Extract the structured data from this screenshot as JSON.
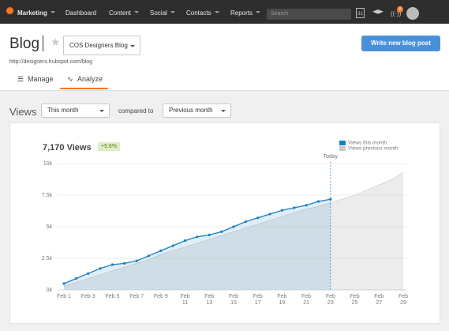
{
  "nav": {
    "items": [
      "Marketing",
      "Dashboard",
      "Content",
      "Social",
      "Contacts",
      "Reports"
    ],
    "search_placeholder": "Search",
    "calendar_day": "31",
    "notification_count": "8"
  },
  "header": {
    "title": "Blog",
    "blog_select": "COS Designers Blog",
    "url": "http://designers.hubspot.com/blog",
    "primary_button": "Write new blog post",
    "tabs": [
      "Manage",
      "Analyze"
    ]
  },
  "filters": {
    "label": "Views",
    "period": "This month",
    "compared_label": "compared to",
    "comparison": "Previous month"
  },
  "chart_data": {
    "type": "area",
    "headline": "7,170 Views",
    "change": "+5.6%",
    "annotation": "Today",
    "categories": [
      "Feb 1",
      null,
      "Feb 3",
      null,
      "Feb 5",
      null,
      "Feb 7",
      null,
      "Feb 9",
      null,
      "Feb 11",
      null,
      "Feb 13",
      null,
      "Feb 15",
      null,
      "Feb 17",
      null,
      "Feb 19",
      null,
      "Feb 21",
      null,
      "Feb 23",
      null,
      "Feb 25",
      null,
      "Feb 27",
      null,
      "Feb 29"
    ],
    "series": [
      {
        "name": "Views this month",
        "color": "#1a7fc1",
        "values": [
          500,
          900,
          1300,
          1700,
          2000,
          2100,
          2300,
          2700,
          3100,
          3500,
          3900,
          4200,
          4350,
          4600,
          5000,
          5400,
          5700,
          6000,
          6300,
          6500,
          6700,
          7000,
          7170,
          null,
          null,
          null,
          null,
          null,
          null
        ]
      },
      {
        "name": "Views previous month",
        "color": "#c8c8c8",
        "values": [
          300,
          600,
          900,
          1200,
          1500,
          1800,
          2100,
          2400,
          2800,
          3100,
          3400,
          3700,
          4000,
          4300,
          4600,
          4900,
          5200,
          5500,
          5800,
          6100,
          6400,
          6600,
          6900,
          7200,
          7500,
          7900,
          8300,
          8700,
          9300
        ]
      }
    ],
    "ylim": [
      0,
      10000
    ],
    "yticks": [
      {
        "value": 0,
        "label": "0k"
      },
      {
        "value": 2500,
        "label": "2.5k"
      },
      {
        "value": 5000,
        "label": "5k"
      },
      {
        "value": 7500,
        "label": "7.5k"
      },
      {
        "value": 10000,
        "label": "10k"
      }
    ],
    "grid": true
  }
}
